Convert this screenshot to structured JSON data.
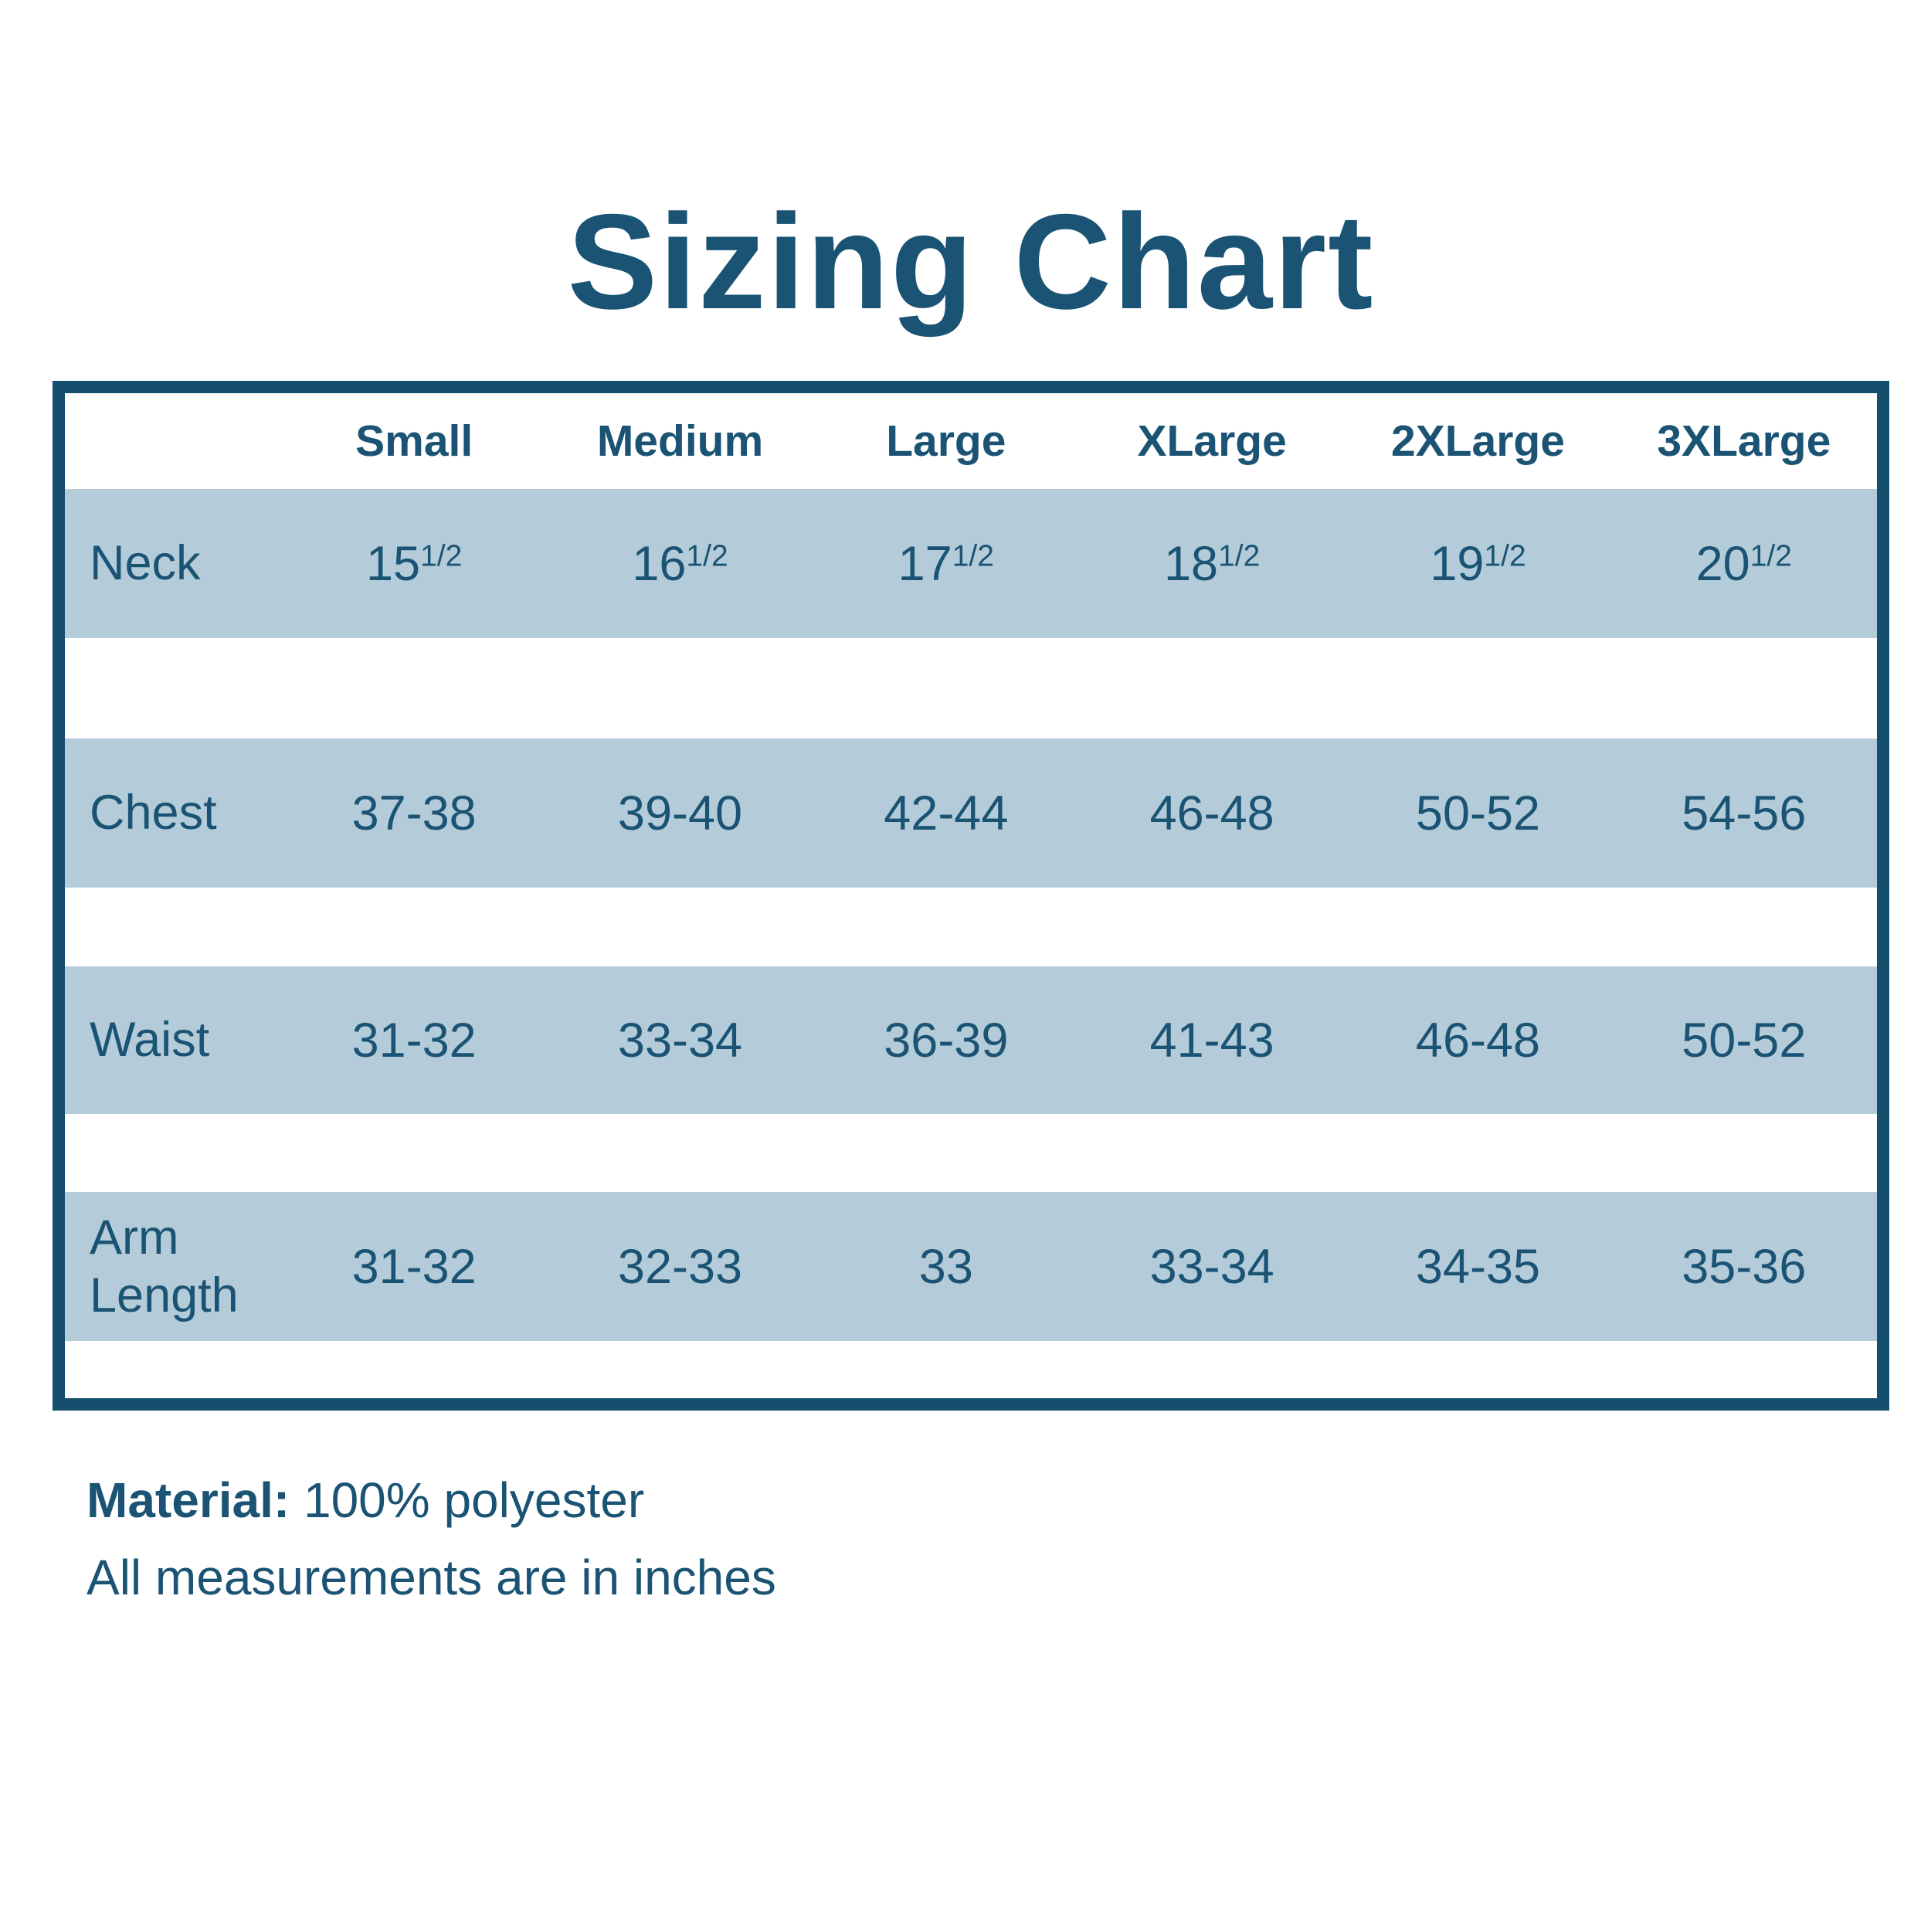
{
  "title": "Sizing Chart",
  "table": {
    "columns": [
      "Small",
      "Medium",
      "Large",
      "XLarge",
      "2XLarge",
      "3XLarge"
    ],
    "rows": [
      {
        "label": "Neck",
        "values": [
          {
            "base": "15",
            "sup": "1/2"
          },
          {
            "base": "16",
            "sup": "1/2"
          },
          {
            "base": "17",
            "sup": "1/2"
          },
          {
            "base": "18",
            "sup": "1/2"
          },
          {
            "base": "19",
            "sup": "1/2"
          },
          {
            "base": "20",
            "sup": "1/2"
          }
        ]
      },
      {
        "label": "Chest",
        "values": [
          {
            "base": "37-38",
            "sup": ""
          },
          {
            "base": "39-40",
            "sup": ""
          },
          {
            "base": "42-44",
            "sup": ""
          },
          {
            "base": "46-48",
            "sup": ""
          },
          {
            "base": "50-52",
            "sup": ""
          },
          {
            "base": "54-56",
            "sup": ""
          }
        ]
      },
      {
        "label": "Waist",
        "values": [
          {
            "base": "31-32",
            "sup": ""
          },
          {
            "base": "33-34",
            "sup": ""
          },
          {
            "base": "36-39",
            "sup": ""
          },
          {
            "base": "41-43",
            "sup": ""
          },
          {
            "base": "46-48",
            "sup": ""
          },
          {
            "base": "50-52",
            "sup": ""
          }
        ]
      },
      {
        "label": "Arm Length",
        "values": [
          {
            "base": "31-32",
            "sup": ""
          },
          {
            "base": "32-33",
            "sup": ""
          },
          {
            "base": "33",
            "sup": ""
          },
          {
            "base": "33-34",
            "sup": ""
          },
          {
            "base": "34-35",
            "sup": ""
          },
          {
            "base": "35-36",
            "sup": ""
          }
        ]
      }
    ]
  },
  "footer": {
    "material_label": "Material:",
    "material_value": "100% polyester",
    "note": "All measurements are in inches"
  },
  "colors": {
    "ink": "#1a5373",
    "border": "#14506e",
    "band": "#b4ccd9",
    "background": "#ffffff"
  },
  "chart_data": {
    "type": "table",
    "title": "Sizing Chart",
    "columns": [
      "",
      "Small",
      "Medium",
      "Large",
      "XLarge",
      "2XLarge",
      "3XLarge"
    ],
    "rows": [
      [
        "Neck",
        "15 1/2",
        "16 1/2",
        "17 1/2",
        "18 1/2",
        "19 1/2",
        "20 1/2"
      ],
      [
        "Chest",
        "37-38",
        "39-40",
        "42-44",
        "46-48",
        "50-52",
        "54-56"
      ],
      [
        "Waist",
        "31-32",
        "33-34",
        "36-39",
        "41-43",
        "46-48",
        "50-52"
      ],
      [
        "Arm Length",
        "31-32",
        "32-33",
        "33",
        "33-34",
        "34-35",
        "35-36"
      ]
    ],
    "notes": [
      "Material: 100% polyester",
      "All measurements are in inches"
    ],
    "units": "inches"
  }
}
